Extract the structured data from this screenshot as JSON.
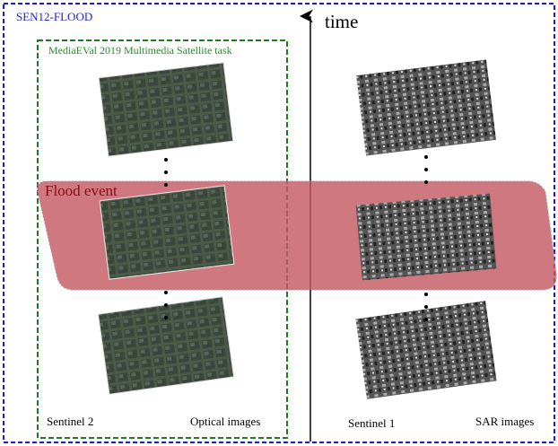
{
  "labels": {
    "dataset": "SEN12-FLOOD",
    "time": "time",
    "task": "MediaEVal 2019 Multimedia Satellite task",
    "event": "Flood event",
    "left_source": "Sentinel 2",
    "left_type": "Optical images",
    "right_source": "Sentinel 1",
    "right_type": "SAR images"
  }
}
